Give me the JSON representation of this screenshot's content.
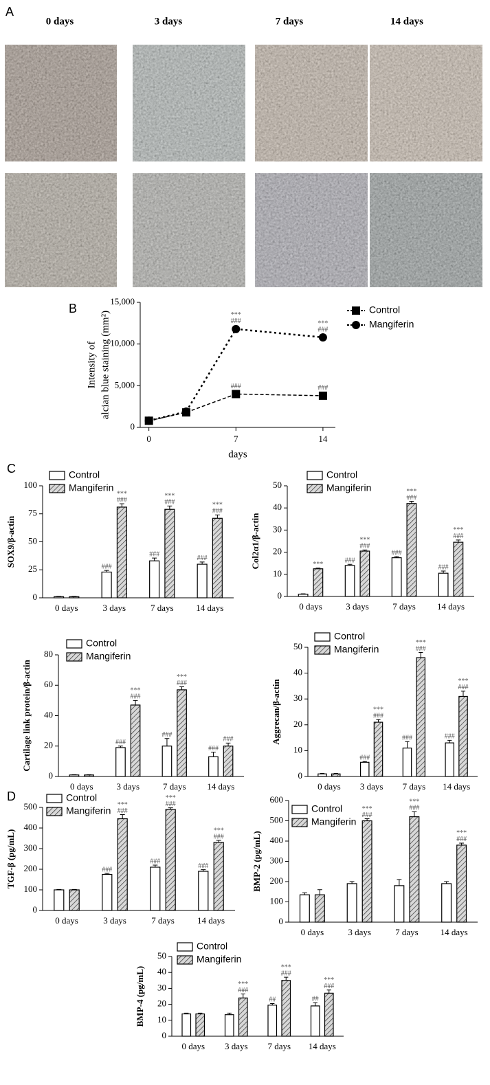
{
  "panel_a": {
    "label": "A",
    "columns": [
      "0 days",
      "3 days",
      "7 days",
      "14 days"
    ]
  },
  "chart_data": [
    {
      "type": "line",
      "panel": "B",
      "ylabel": [
        "Intensity of",
        "alcian blue staining (mm²)"
      ],
      "xlabel": "days",
      "x": [
        0,
        3,
        7,
        14
      ],
      "xlim": [
        -0.7,
        15
      ],
      "xticks": [
        0,
        7,
        14
      ],
      "ylim": [
        0,
        15000
      ],
      "yticks": [
        0,
        {
          "value": 5000,
          "label": "5,000"
        },
        {
          "value": 10000,
          "label": "10,000"
        },
        {
          "value": 15000,
          "label": "15,000"
        }
      ],
      "grid": false,
      "series": [
        {
          "name": "Control",
          "color": "#000000",
          "marker": "square",
          "line_style": "dashed",
          "values": [
            800,
            1800,
            4000,
            3800
          ],
          "annotations": [
            null,
            null,
            [
              "###"
            ],
            [
              "###"
            ]
          ]
        },
        {
          "name": "Mangiferin",
          "color": "#000000",
          "marker": "circle",
          "line_style": "dotted",
          "values": [
            800,
            1900,
            11800,
            10800
          ],
          "annotations": [
            null,
            null,
            [
              "***",
              "###"
            ],
            [
              "***",
              "###"
            ]
          ]
        }
      ]
    },
    {
      "type": "bar",
      "panel": "C",
      "ylabel": "SOX9/β-actin",
      "categories": [
        "0 days",
        "3 days",
        "7 days",
        "14 days"
      ],
      "ylim": [
        0,
        100
      ],
      "yticks": [
        0,
        25,
        50,
        75,
        100
      ],
      "series": [
        {
          "name": "Control",
          "color": "#ffffff",
          "hatch": false,
          "values": [
            1,
            23,
            33,
            30
          ],
          "errors": [
            0.3,
            1.5,
            2.5,
            2
          ],
          "annotations": [
            null,
            [
              "###"
            ],
            [
              "###"
            ],
            [
              "###"
            ]
          ]
        },
        {
          "name": "Mangiferin",
          "color": "#d0d0d0",
          "hatch": true,
          "values": [
            1,
            81,
            79,
            71
          ],
          "errors": [
            0.3,
            3,
            3,
            3
          ],
          "annotations": [
            null,
            [
              "***",
              "###"
            ],
            [
              "***",
              "###"
            ],
            [
              "***",
              "###"
            ]
          ]
        }
      ]
    },
    {
      "type": "bar",
      "ylabel": "Col2α1/β-actin",
      "categories": [
        "0 days",
        "3 days",
        "7 days",
        "14 days"
      ],
      "ylim": [
        0,
        50
      ],
      "yticks": [
        0,
        10,
        20,
        30,
        40,
        50
      ],
      "series": [
        {
          "name": "Control",
          "color": "#ffffff",
          "hatch": false,
          "values": [
            1,
            14,
            17.5,
            10.5
          ],
          "errors": [
            0.2,
            0.5,
            0.5,
            1
          ],
          "annotations": [
            null,
            [
              "###"
            ],
            [
              "###"
            ],
            [
              "###"
            ]
          ]
        },
        {
          "name": "Mangiferin",
          "color": "#d0d0d0",
          "hatch": true,
          "values": [
            12.5,
            20.5,
            42,
            24.5
          ],
          "errors": [
            0.3,
            0.5,
            1,
            1
          ],
          "annotations": [
            [
              "***"
            ],
            [
              "***",
              "###"
            ],
            [
              "***",
              "###"
            ],
            [
              "***",
              "###"
            ]
          ]
        }
      ]
    },
    {
      "type": "bar",
      "ylabel": "Cartilage link protein/β-actin",
      "categories": [
        "0 days",
        "3 days",
        "7 days",
        "14 days"
      ],
      "ylim": [
        0,
        80
      ],
      "yticks": [
        0,
        20,
        40,
        60,
        80
      ],
      "series": [
        {
          "name": "Control",
          "color": "#ffffff",
          "hatch": false,
          "values": [
            1,
            19,
            20,
            13
          ],
          "errors": [
            0.2,
            1,
            5,
            3
          ],
          "annotations": [
            null,
            [
              "###"
            ],
            [
              "###"
            ],
            [
              "###"
            ]
          ]
        },
        {
          "name": "Mangiferin",
          "color": "#d0d0d0",
          "hatch": true,
          "values": [
            1,
            47,
            57,
            20
          ],
          "errors": [
            0.2,
            3,
            2,
            2
          ],
          "annotations": [
            null,
            [
              "***",
              "###"
            ],
            [
              "***",
              "###"
            ],
            [
              "###"
            ]
          ]
        }
      ]
    },
    {
      "type": "bar",
      "ylabel": "Aggrecan/β-actin",
      "categories": [
        "0 days",
        "3 days",
        "7 days",
        "14 days"
      ],
      "ylim": [
        0,
        50
      ],
      "yticks": [
        0,
        10,
        20,
        30,
        40,
        50
      ],
      "series": [
        {
          "name": "Control",
          "color": "#ffffff",
          "hatch": false,
          "values": [
            1,
            5.5,
            11,
            13
          ],
          "errors": [
            0.2,
            0.3,
            2.5,
            1
          ],
          "annotations": [
            null,
            [
              "###"
            ],
            [
              "###"
            ],
            [
              "###"
            ]
          ]
        },
        {
          "name": "Mangiferin",
          "color": "#d0d0d0",
          "hatch": true,
          "values": [
            1,
            21,
            46,
            31
          ],
          "errors": [
            0.2,
            1,
            2,
            2
          ],
          "annotations": [
            null,
            [
              "***",
              "###"
            ],
            [
              "***",
              "###"
            ],
            [
              "***",
              "###"
            ]
          ]
        }
      ]
    },
    {
      "type": "bar",
      "panel": "D",
      "ylabel": "TGF-β (pg/mL)",
      "categories": [
        "0 days",
        "3 days",
        "7 days",
        "14 days"
      ],
      "ylim": [
        0,
        500
      ],
      "yticks": [
        0,
        100,
        200,
        300,
        400,
        500
      ],
      "series": [
        {
          "name": "Control",
          "color": "#ffffff",
          "hatch": false,
          "values": [
            100,
            175,
            210,
            190
          ],
          "errors": [
            2,
            5,
            10,
            8
          ],
          "annotations": [
            null,
            [
              "###"
            ],
            [
              "###"
            ],
            [
              "###"
            ]
          ]
        },
        {
          "name": "Mangiferin",
          "color": "#d0d0d0",
          "hatch": true,
          "values": [
            100,
            445,
            490,
            330
          ],
          "errors": [
            2,
            20,
            8,
            10
          ],
          "annotations": [
            null,
            [
              "***",
              "###"
            ],
            [
              "***",
              "###"
            ],
            [
              "***",
              "###"
            ]
          ]
        }
      ]
    },
    {
      "type": "bar",
      "ylabel": "BMP-2 (pg/mL)",
      "categories": [
        "0 days",
        "3 days",
        "7 days",
        "14 days"
      ],
      "ylim": [
        0,
        600
      ],
      "yticks": [
        0,
        100,
        200,
        300,
        400,
        500,
        600
      ],
      "series": [
        {
          "name": "Control",
          "color": "#ffffff",
          "hatch": false,
          "values": [
            135,
            190,
            180,
            190
          ],
          "errors": [
            10,
            10,
            30,
            10
          ],
          "annotations": [
            null,
            null,
            null,
            null
          ]
        },
        {
          "name": "Mangiferin",
          "color": "#d0d0d0",
          "hatch": true,
          "values": [
            135,
            500,
            520,
            380
          ],
          "errors": [
            25,
            10,
            25,
            10
          ],
          "annotations": [
            null,
            [
              "***",
              "###"
            ],
            [
              "***",
              "###"
            ],
            [
              "***",
              "###"
            ]
          ]
        }
      ]
    },
    {
      "type": "bar",
      "ylabel": "BMP-4 (pg/mL)",
      "categories": [
        "0 days",
        "3 days",
        "7 days",
        "14 days"
      ],
      "ylim": [
        0,
        50
      ],
      "yticks": [
        0,
        10,
        20,
        30,
        40,
        50
      ],
      "series": [
        {
          "name": "Control",
          "color": "#ffffff",
          "hatch": false,
          "values": [
            14,
            13.5,
            19.5,
            19
          ],
          "errors": [
            0.5,
            1,
            1,
            2
          ],
          "annotations": [
            null,
            null,
            [
              "##"
            ],
            [
              "##"
            ]
          ]
        },
        {
          "name": "Mangiferin",
          "color": "#d0d0d0",
          "hatch": true,
          "values": [
            14,
            24,
            35,
            27
          ],
          "errors": [
            0.5,
            2.5,
            2,
            2
          ],
          "annotations": [
            null,
            [
              "***",
              "###"
            ],
            [
              "***",
              "###"
            ],
            [
              "***",
              "###"
            ]
          ]
        }
      ]
    }
  ]
}
